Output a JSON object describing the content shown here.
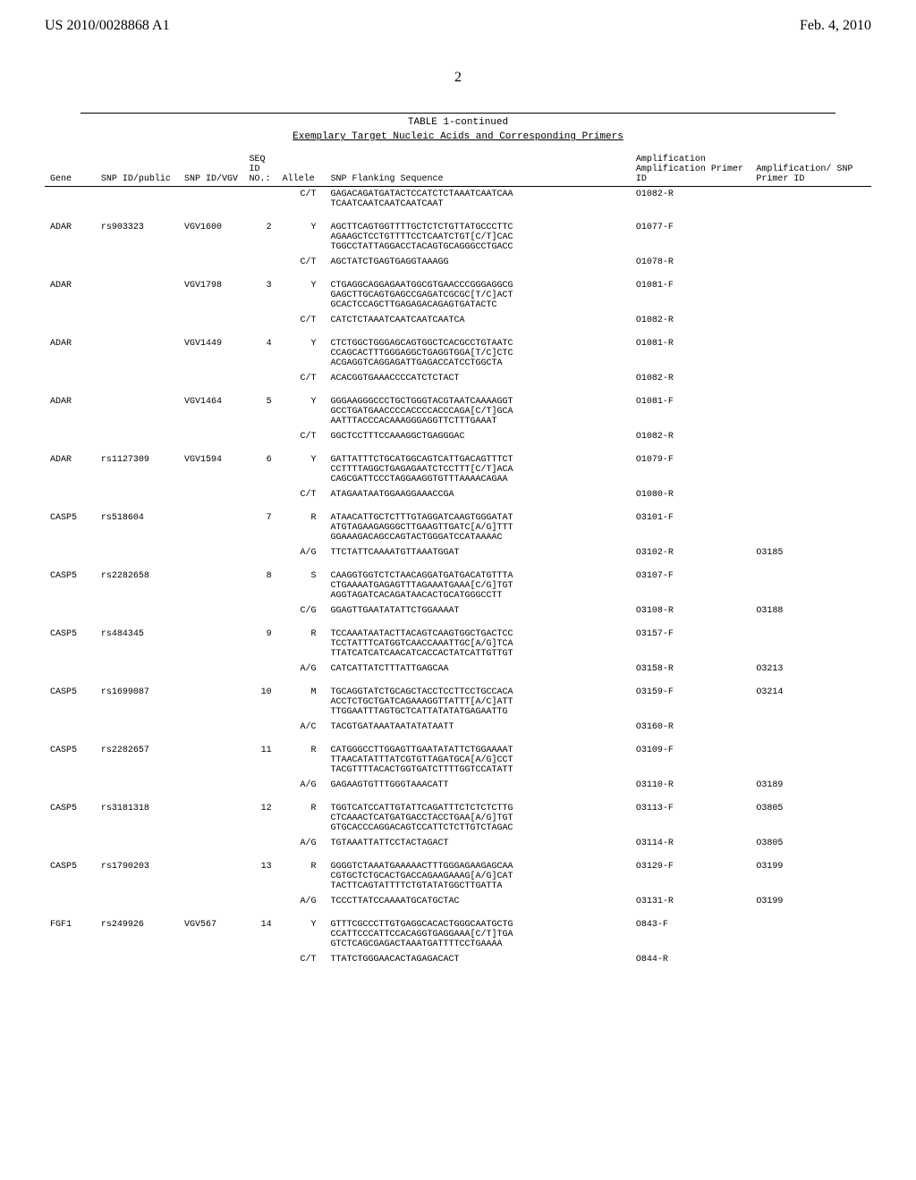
{
  "header": {
    "doc_number": "US 2010/0028868 A1",
    "date": "Feb. 4, 2010"
  },
  "page_number": "2",
  "table": {
    "title": "TABLE 1-continued",
    "subtitle": "Exemplary Target Nucleic Acids and Corresponding Primers",
    "columns": {
      "gene": "Gene",
      "snp_public": "SNP\nID/public",
      "snp_vgv": "SNP\nID/VGV",
      "seq_no": "SEQ\nID\nNO.:",
      "allele": "Allele",
      "flanking": "SNP Flanking Sequence",
      "amp_primer": "Amplification\nAmplification\nPrimer\nID",
      "snp_primer": "Amplification/\nSNP\nPrimer\nID"
    },
    "rows": [
      {
        "gene": "",
        "snp": "",
        "vgv": "",
        "seq": "",
        "allele": "C/T",
        "seqtext": "GAGACAGATGATACTCCATCTCTAAATCAATCAA\nTCAATCAATCAATCAATCAAT",
        "amp": "O1082-R",
        "snpp": "",
        "gap": false
      },
      {
        "gene": "ADAR",
        "snp": "rs903323",
        "vgv": "VGV1600",
        "seq": "2",
        "allele": "Y",
        "seqtext": "AGCTTCAGTGGTTTTGCTCTCTGTTATGCCCTTC\nAGAAGCTCCTGTTTTCCTCAATCTGT[C/T]CAC\nTGGCCTATTAGGACCTACAGTGCAGGGCCTGACC",
        "amp": "O1077-F",
        "snpp": "",
        "gap": true
      },
      {
        "gene": "",
        "snp": "",
        "vgv": "",
        "seq": "",
        "allele": "C/T",
        "seqtext": "AGCTATCTGAGTGAGGTAAAGG",
        "amp": "O1078-R",
        "snpp": "",
        "gap": false
      },
      {
        "gene": "ADAR",
        "snp": "",
        "vgv": "VGV1798",
        "seq": "3",
        "allele": "Y",
        "seqtext": "CTGAGGCAGGAGAATGGCGTGAACCCGGGAGGCG\nGAGCTTGCAGTGAGCCGAGATCGCGC[T/C]ACT\nGCACTCCAGCTTGAGAGACAGAGTGATACTC",
        "amp": "O1081-F",
        "snpp": "",
        "gap": true
      },
      {
        "gene": "",
        "snp": "",
        "vgv": "",
        "seq": "",
        "allele": "C/T",
        "seqtext": "CATCTCTAAATCAATCAATCAATCA",
        "amp": "O1082-R",
        "snpp": "",
        "gap": false
      },
      {
        "gene": "ADAR",
        "snp": "",
        "vgv": "VGV1449",
        "seq": "4",
        "allele": "Y",
        "seqtext": "CTCTGGCTGGGAGCAGTGGCTCACGCCTGTAATC\nCCAGCACTTTGGGAGGCTGAGGTGGA[T/C]CTC\nACGAGGTCAGGAGATTGAGACCATCCTGGCTA",
        "amp": "O1081-R",
        "snpp": "",
        "gap": true
      },
      {
        "gene": "",
        "snp": "",
        "vgv": "",
        "seq": "",
        "allele": "C/T",
        "seqtext": "ACACGGTGAAACCCCATCTCTACT",
        "amp": "O1082-R",
        "snpp": "",
        "gap": false
      },
      {
        "gene": "ADAR",
        "snp": "",
        "vgv": "VGV1464",
        "seq": "5",
        "allele": "Y",
        "seqtext": "GGGAAGGGCCCTGCTGGGTACGTAATCAAAAGGT\nGCCTGATGAACCCCACCCCACCCAGA[C/T]GCA\nAATTTACCCACAAAGGGAGGTTCTTTGAAAT",
        "amp": "O1081-F",
        "snpp": "",
        "gap": true
      },
      {
        "gene": "",
        "snp": "",
        "vgv": "",
        "seq": "",
        "allele": "C/T",
        "seqtext": "GGCTCCTTTCCAAAGGCTGAGGGAC",
        "amp": "O1082-R",
        "snpp": "",
        "gap": false
      },
      {
        "gene": "ADAR",
        "snp": "rs1127309",
        "vgv": "VGV1594",
        "seq": "6",
        "allele": "Y",
        "seqtext": "GATTATTTCTGCATGGCAGTCATTGACAGTTTCT\nCCTTTTAGGCTGAGAGAATCTCCTTT[C/T]ACA\nCAGCGATTCCCTAGGAAGGTGTTTAAAACAGAA",
        "amp": "O1079-F",
        "snpp": "",
        "gap": true
      },
      {
        "gene": "",
        "snp": "",
        "vgv": "",
        "seq": "",
        "allele": "C/T",
        "seqtext": "ATAGAATAATGGAAGGAAACCGA",
        "amp": "O1080-R",
        "snpp": "",
        "gap": false
      },
      {
        "gene": "CASP5",
        "snp": "rs518604",
        "vgv": "",
        "seq": "7",
        "allele": "R",
        "seqtext": "ATAACATTGCTCTTTGTAGGATCAAGTGGGATAT\nATGTAGAAGAGGGCTTGAAGTTGATC[A/G]TTT\nGGAAAGACAGCCAGTACTGGGATCCATAAAAC",
        "amp": "O3101-F",
        "snpp": "",
        "gap": true
      },
      {
        "gene": "",
        "snp": "",
        "vgv": "",
        "seq": "",
        "allele": "A/G",
        "seqtext": "TTCTATTCAAAATGTTAAATGGAT",
        "amp": "O3102-R",
        "snpp": "O3185",
        "gap": false
      },
      {
        "gene": "CASP5",
        "snp": "rs2282658",
        "vgv": "",
        "seq": "8",
        "allele": "S",
        "seqtext": "CAAGGTGGTCTCTAACAGGATGATGACATGTTTA\nCTGAAAATGAGAGTTTAGAAATGAAA[C/G]TGT\nAGGTAGATCACAGATAACACTGCATGGGCCTT",
        "amp": "O3107-F",
        "snpp": "",
        "gap": true
      },
      {
        "gene": "",
        "snp": "",
        "vgv": "",
        "seq": "",
        "allele": "C/G",
        "seqtext": "GGAGTTGAATATATTCTGGAAAAT",
        "amp": "O3108-R",
        "snpp": "O3188",
        "gap": false
      },
      {
        "gene": "CASP5",
        "snp": "rs484345",
        "vgv": "",
        "seq": "9",
        "allele": "R",
        "seqtext": "TCCAAATAATACTTACAGTCAAGTGGCTGACTCC\nTCCTATTTCATGGTCAACCAAATTGC[A/G]TCA\nTTATCATCATCAACATCACCACTATCATTGTTGT",
        "amp": "O3157-F",
        "snpp": "",
        "gap": true
      },
      {
        "gene": "",
        "snp": "",
        "vgv": "",
        "seq": "",
        "allele": "A/G",
        "seqtext": "CATCATTATCTTTATTGAGCAA",
        "amp": "O3158-R",
        "snpp": "O3213",
        "gap": false
      },
      {
        "gene": "CASP5",
        "snp": "rs1699087",
        "vgv": "",
        "seq": "10",
        "allele": "M",
        "seqtext": "TGCAGGTATCTGCAGCTACCTCCTTCCTGCCACA\nACCTCTGCTGATCAGAAAGGTTATTT[A/C]ATT\nTTGGAATTTAGTGCTCATTATATATGAGAATTG",
        "amp": "O3159-F",
        "snpp": "O3214",
        "gap": true
      },
      {
        "gene": "",
        "snp": "",
        "vgv": "",
        "seq": "",
        "allele": "A/C",
        "seqtext": "TACGTGATAAATAATATATAATT",
        "amp": "O3160-R",
        "snpp": "",
        "gap": false
      },
      {
        "gene": "CASP5",
        "snp": "rs2282657",
        "vgv": "",
        "seq": "11",
        "allele": "R",
        "seqtext": "CATGGGCCTTGGAGTTGAATATATTCTGGAAAAT\nTTAACATATTTATCGTGTTAGATGCA[A/G]CCT\nTACGTTTTACACTGGTGATCTTTTGGTCCATATT",
        "amp": "O3109-F",
        "snpp": "",
        "gap": true
      },
      {
        "gene": "",
        "snp": "",
        "vgv": "",
        "seq": "",
        "allele": "A/G",
        "seqtext": "GAGAAGTGTTTGGGTAAACATT",
        "amp": "O3110-R",
        "snpp": "O3189",
        "gap": false
      },
      {
        "gene": "CASP5",
        "snp": "rs3181318",
        "vgv": "",
        "seq": "12",
        "allele": "R",
        "seqtext": "TGGTCATCCATTGTATTCAGATTTCTCTCTCTTG\nCTCAAACTCATGATGACCTACCTGAA[A/G]TGT\nGTGCACCCAGGACAGTCCATTCTCTTGTCTAGAC",
        "amp": "O3113-F",
        "snpp": "O3805",
        "gap": true
      },
      {
        "gene": "",
        "snp": "",
        "vgv": "",
        "seq": "",
        "allele": "A/G",
        "seqtext": "TGTAAATTATTCCTACTAGACT",
        "amp": "O3114-R",
        "snpp": "O3805",
        "gap": false
      },
      {
        "gene": "CASP5",
        "snp": "rs1790203",
        "vgv": "",
        "seq": "13",
        "allele": "R",
        "seqtext": "GGGGTCTAAATGAAAAACTTTGGGAGAAGAGCAA\nCGTGCTCTGCACTGACCAGAAGAAAG[A/G]CAT\nTACTTCAGTATTTTCTGTATATGGCTTGATTA",
        "amp": "O3129-F",
        "snpp": "O3199",
        "gap": true
      },
      {
        "gene": "",
        "snp": "",
        "vgv": "",
        "seq": "",
        "allele": "A/G",
        "seqtext": "TCCCTTATCCAAAATGCATGCTAC",
        "amp": "O3131-R",
        "snpp": "O3199",
        "gap": false
      },
      {
        "gene": "FGF1",
        "snp": "rs249926",
        "vgv": "VGV567",
        "seq": "14",
        "allele": "Y",
        "seqtext": "GTTTCGCCCTTGTGAGGCACACTGGGCAATGCTG\nCCATTCCCATTCCACAGGTGAGGAAA[C/T]TGA\nGTCTCAGCGAGACTAAATGATTTTCCTGAAAA",
        "amp": "O843-F",
        "snpp": "",
        "gap": true
      },
      {
        "gene": "",
        "snp": "",
        "vgv": "",
        "seq": "",
        "allele": "C/T",
        "seqtext": "TTATCTGGGAACACTAGAGACACT",
        "amp": "O844-R",
        "snpp": "",
        "gap": false
      }
    ]
  }
}
